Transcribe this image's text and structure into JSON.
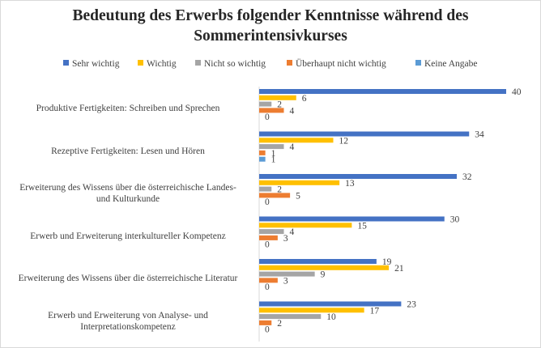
{
  "chart_data": {
    "type": "bar",
    "orientation": "horizontal",
    "title_line1": "Bedeutung des Erwerbs folgender Kenntnisse während des",
    "title_line2": "Sommerintensivkurses",
    "categories": [
      [
        "Produktive Fertigkeiten: Schreiben und Sprechen"
      ],
      [
        "Rezeptive Fertigkeiten: Lesen und Hören"
      ],
      [
        "Erweiterung des Wissens über die österreichische Landes-",
        "und Kulturkunde"
      ],
      [
        "Erwerb und Erweiterung interkultureller Kompetenz"
      ],
      [
        "Erweiterung des Wissens über die österreichische Literatur"
      ],
      [
        "Erwerb und Erweiterung von Analyse- und",
        "Interpretationskompetenz"
      ]
    ],
    "series": [
      {
        "name": "Sehr wichtig",
        "color": "#4472c4",
        "values": [
          40,
          34,
          32,
          30,
          19,
          23
        ]
      },
      {
        "name": "Wichtig",
        "color": "#ffc000",
        "values": [
          6,
          12,
          13,
          15,
          21,
          17
        ]
      },
      {
        "name": "Nicht so wichtig",
        "color": "#a5a5a5",
        "values": [
          2,
          4,
          2,
          4,
          9,
          10
        ]
      },
      {
        "name": "Überhaupt nicht wichtig",
        "color": "#ed7d31",
        "values": [
          4,
          1,
          5,
          3,
          3,
          2
        ]
      },
      {
        "name": "Keine Angabe",
        "color": "#5b9bd5",
        "values": [
          0,
          1,
          0,
          0,
          0,
          0
        ]
      }
    ],
    "xlim": [
      0,
      40
    ],
    "grid": false,
    "data_labels": true,
    "legend_position": "top"
  }
}
